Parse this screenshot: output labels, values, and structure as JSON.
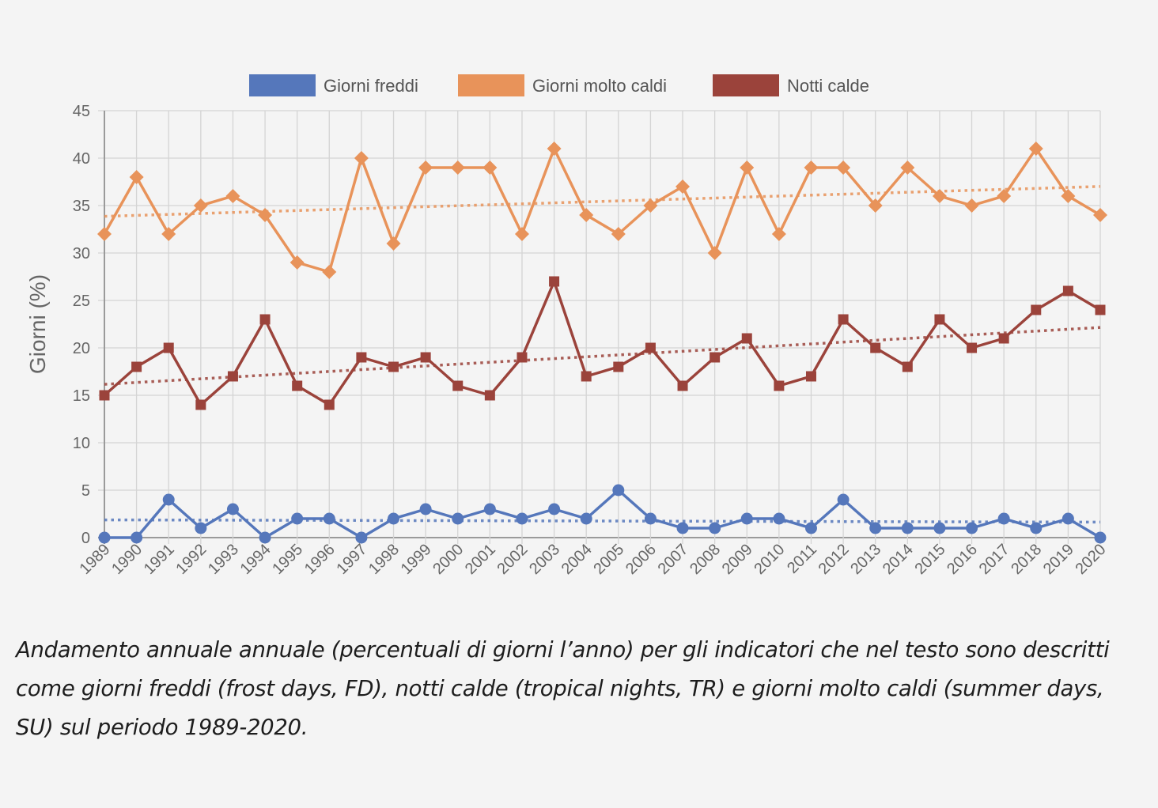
{
  "chart_data": {
    "type": "line",
    "title": "",
    "xlabel": "",
    "ylabel": "Giorni (%)",
    "ylim": [
      0,
      45
    ],
    "yticks": [
      0,
      5,
      10,
      15,
      20,
      25,
      30,
      35,
      40,
      45
    ],
    "grid": true,
    "legend_position": "top-center",
    "x": [
      "1989",
      "1990",
      "1991",
      "1992",
      "1993",
      "1994",
      "1995",
      "1996",
      "1997",
      "1998",
      "1999",
      "2000",
      "2001",
      "2002",
      "2003",
      "2004",
      "2005",
      "2006",
      "2007",
      "2008",
      "2009",
      "2010",
      "2011",
      "2012",
      "2013",
      "2014",
      "2015",
      "2016",
      "2017",
      "2018",
      "2019",
      "2020"
    ],
    "series": [
      {
        "name": "Giorni freddi",
        "color": "#5577bb",
        "marker": "circle",
        "trendline": true,
        "values": [
          0,
          0,
          4,
          1,
          3,
          0,
          2,
          2,
          0,
          2,
          3,
          2,
          3,
          2,
          3,
          2,
          5,
          2,
          1,
          1,
          2,
          2,
          1,
          4,
          1,
          1,
          1,
          1,
          2,
          1,
          2,
          0
        ]
      },
      {
        "name": "Giorni molto caldi",
        "color": "#e8935a",
        "marker": "diamond",
        "trendline": true,
        "values": [
          32,
          38,
          32,
          35,
          36,
          34,
          29,
          28,
          40,
          31,
          39,
          39,
          39,
          32,
          41,
          34,
          32,
          35,
          37,
          30,
          39,
          32,
          39,
          39,
          35,
          39,
          36,
          35,
          36,
          41,
          36,
          34
        ]
      },
      {
        "name": "Notti calde",
        "color": "#9b433b",
        "marker": "square",
        "trendline": true,
        "values": [
          15,
          18,
          20,
          14,
          17,
          23,
          16,
          14,
          19,
          18,
          19,
          16,
          15,
          19,
          27,
          17,
          18,
          20,
          16,
          19,
          21,
          16,
          17,
          23,
          20,
          18,
          23,
          20,
          21,
          24,
          26,
          24
        ]
      }
    ]
  },
  "caption": "Andamento annuale annuale (percentuali di giorni l’anno) per gli indicatori che nel testo sono descritti come giorni freddi (frost days, FD), notti calde (tropical nights, TR) e giorni molto caldi (summer days, SU) sul periodo 1989-2020."
}
